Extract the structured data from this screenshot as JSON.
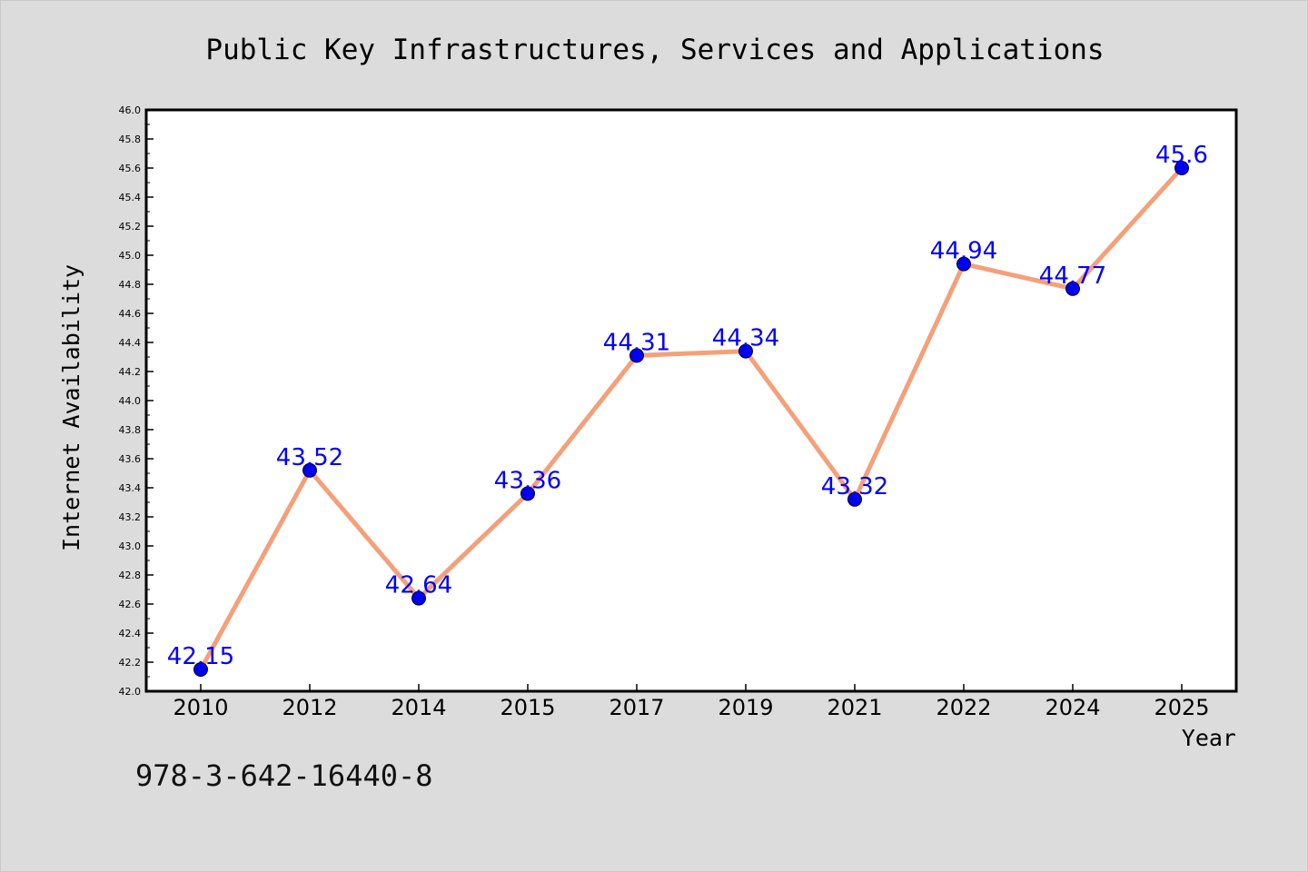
{
  "chart_data": {
    "type": "line",
    "title": "Public Key Infrastructures, Services and Applications",
    "xlabel": "Year",
    "ylabel": "Internet Availability",
    "categories": [
      "2010",
      "2012",
      "2014",
      "2015",
      "2017",
      "2019",
      "2021",
      "2022",
      "2024",
      "2025"
    ],
    "values": [
      42.15,
      43.52,
      42.64,
      43.36,
      44.31,
      44.34,
      43.32,
      44.94,
      44.77,
      45.6
    ],
    "data_labels": [
      "42.15",
      "43.52",
      "42.64",
      "43.36",
      "44.31",
      "44.34",
      "43.32",
      "44.94",
      "44.77",
      "45.6"
    ],
    "ylim": [
      42.0,
      46.0
    ],
    "yticks": [
      "42.0",
      "42.2",
      "42.4",
      "42.6",
      "42.8",
      "43.0",
      "43.2",
      "43.4",
      "43.6",
      "43.8",
      "44.0",
      "44.2",
      "44.4",
      "44.6",
      "44.8",
      "45.0",
      "45.2",
      "45.4",
      "45.6",
      "45.8",
      "46.0"
    ],
    "grid": false,
    "legend": "none",
    "line_color": "#f4a07a",
    "marker_color": "#0000ee",
    "label_color": "#0000ff"
  },
  "footnote": "978-3-642-16440-8"
}
